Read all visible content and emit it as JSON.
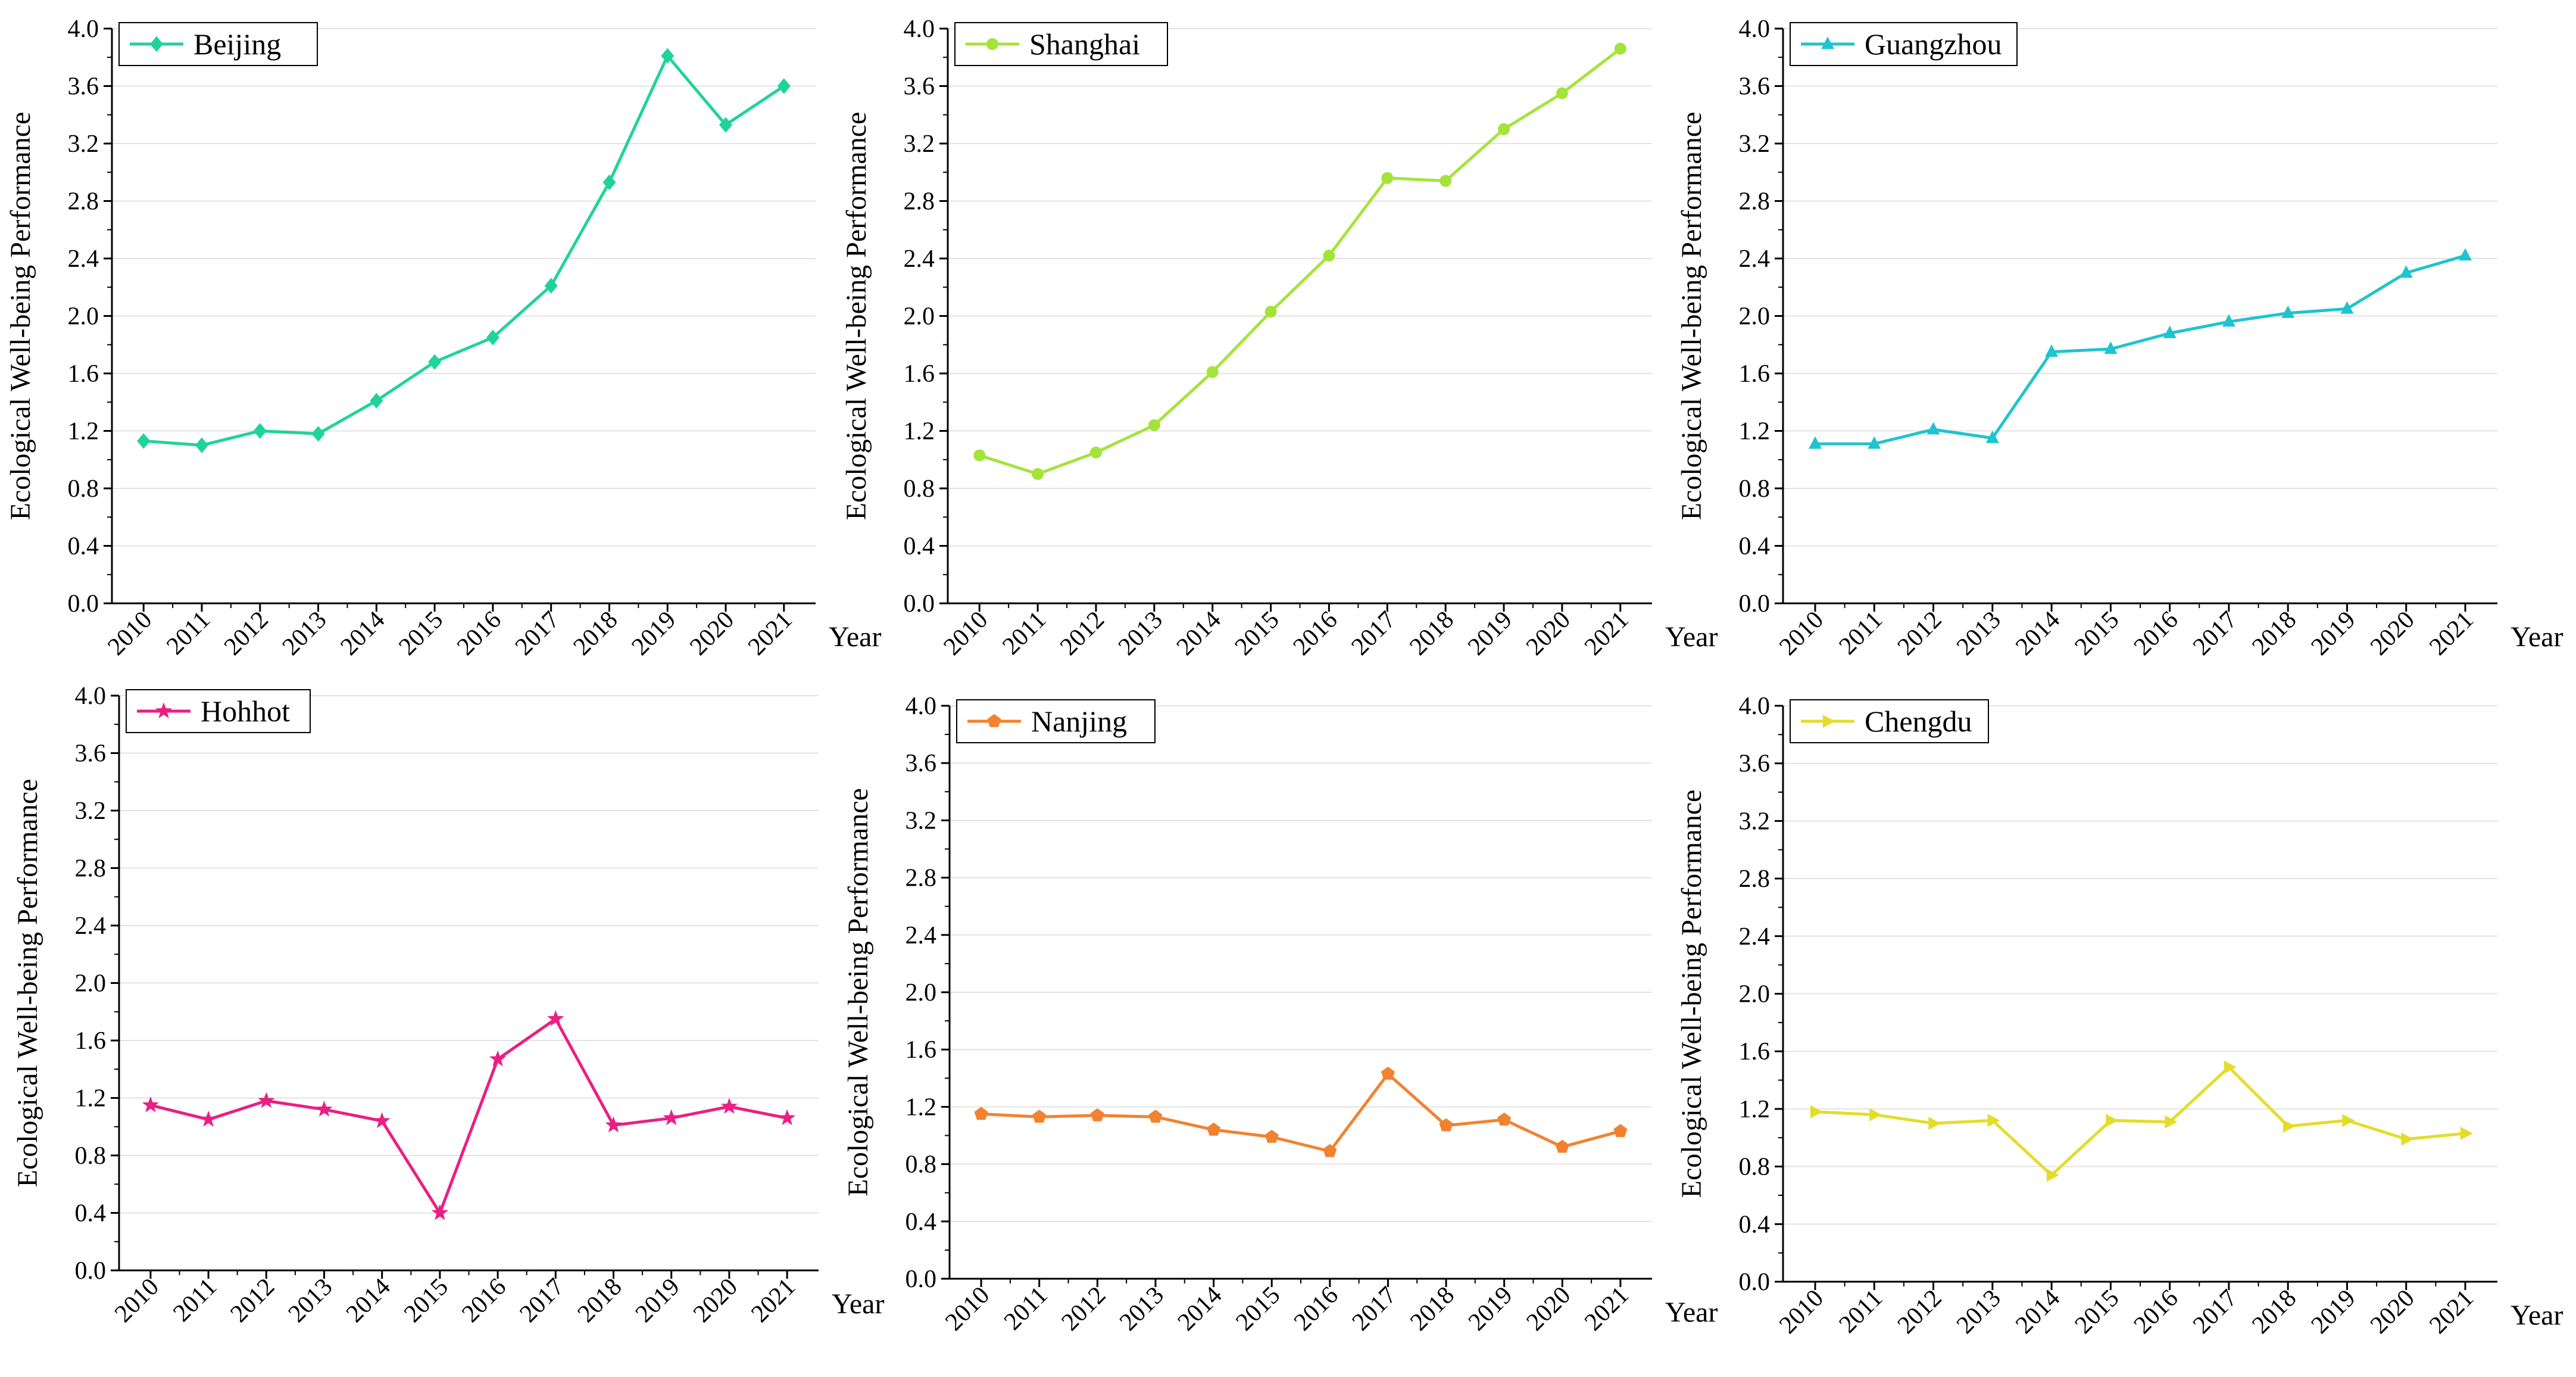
{
  "chart_data": [
    {
      "type": "line",
      "title": "",
      "legend": "Beijing",
      "legend_position": "top-left",
      "marker": "diamond",
      "color": "#1fd39a",
      "xlabel": "Year",
      "ylabel": "Ecological Well-being Performance",
      "ylim": [
        0,
        4
      ],
      "yticks": [
        "0.0",
        "0.4",
        "0.8",
        "1.2",
        "1.6",
        "2.0",
        "2.4",
        "2.8",
        "3.2",
        "3.6",
        "4.0"
      ],
      "categories": [
        "2010",
        "2011",
        "2012",
        "2013",
        "2014",
        "2015",
        "2016",
        "2017",
        "2018",
        "2019",
        "2020",
        "2021"
      ],
      "values": [
        1.13,
        1.1,
        1.2,
        1.18,
        1.41,
        1.68,
        1.85,
        2.21,
        2.93,
        3.81,
        3.33,
        3.6
      ],
      "grid": true
    },
    {
      "type": "line",
      "title": "",
      "legend": "Shanghai",
      "legend_position": "top-left",
      "marker": "circle",
      "color": "#a4e43a",
      "xlabel": "Year",
      "ylabel": "Ecological Well-being Performance",
      "ylim": [
        0,
        4
      ],
      "yticks": [
        "0.0",
        "0.4",
        "0.8",
        "1.2",
        "1.6",
        "2.0",
        "2.4",
        "2.8",
        "3.2",
        "3.6",
        "4.0"
      ],
      "categories": [
        "2010",
        "2011",
        "2012",
        "2013",
        "2014",
        "2015",
        "2016",
        "2017",
        "2018",
        "2019",
        "2020",
        "2021"
      ],
      "values": [
        1.03,
        0.9,
        1.05,
        1.24,
        1.61,
        2.03,
        2.42,
        2.96,
        2.94,
        3.3,
        3.55,
        3.86
      ],
      "grid": true
    },
    {
      "type": "line",
      "title": "",
      "legend": "Guangzhou",
      "legend_position": "top-left",
      "marker": "triangle",
      "color": "#1ec4cf",
      "xlabel": "Year",
      "ylabel": "Ecological Well-being Performance",
      "ylim": [
        0,
        4
      ],
      "yticks": [
        "0.0",
        "0.4",
        "0.8",
        "1.2",
        "1.6",
        "2.0",
        "2.4",
        "2.8",
        "3.2",
        "3.6",
        "4.0"
      ],
      "categories": [
        "2010",
        "2011",
        "2012",
        "2013",
        "2014",
        "2015",
        "2016",
        "2017",
        "2018",
        "2019",
        "2020",
        "2021"
      ],
      "values": [
        1.11,
        1.11,
        1.21,
        1.15,
        1.75,
        1.77,
        1.88,
        1.96,
        2.02,
        2.05,
        2.3,
        2.42
      ],
      "grid": true
    },
    {
      "type": "line",
      "title": "",
      "legend": "Hohhot",
      "legend_position": "top-left",
      "marker": "star",
      "color": "#ea1f83",
      "xlabel": "Year",
      "ylabel": "Ecological Well-being Performance",
      "ylim": [
        0,
        4
      ],
      "yticks": [
        "0.0",
        "0.4",
        "0.8",
        "1.2",
        "1.6",
        "2.0",
        "2.4",
        "2.8",
        "3.2",
        "3.6",
        "4.0"
      ],
      "categories": [
        "2010",
        "2011",
        "2012",
        "2013",
        "2014",
        "2015",
        "2016",
        "2017",
        "2018",
        "2019",
        "2020",
        "2021"
      ],
      "values": [
        1.15,
        1.05,
        1.18,
        1.12,
        1.04,
        0.4,
        1.47,
        1.75,
        1.01,
        1.06,
        1.14,
        1.06
      ],
      "grid": true
    },
    {
      "type": "line",
      "title": "",
      "legend": "Nanjing",
      "legend_position": "top-left",
      "marker": "pentagon",
      "color": "#f2822f",
      "xlabel": "Year",
      "ylabel": "Ecological Well-being Performance",
      "ylim": [
        0,
        4
      ],
      "yticks": [
        "0.0",
        "0.4",
        "0.8",
        "1.2",
        "1.6",
        "2.0",
        "2.4",
        "2.8",
        "3.2",
        "3.6",
        "4.0"
      ],
      "categories": [
        "2010",
        "2011",
        "2012",
        "2013",
        "2014",
        "2015",
        "2016",
        "2017",
        "2018",
        "2019",
        "2020",
        "2021"
      ],
      "values": [
        1.15,
        1.13,
        1.14,
        1.13,
        1.04,
        0.99,
        0.89,
        1.43,
        1.07,
        1.11,
        0.92,
        1.03
      ],
      "grid": true
    },
    {
      "type": "line",
      "title": "",
      "legend": "Chengdu",
      "legend_position": "top-left",
      "marker": "right-triangle",
      "color": "#e4dc2a",
      "xlabel": "Year",
      "ylabel": "Ecological Well-being Performance",
      "ylim": [
        0,
        4
      ],
      "yticks": [
        "0.0",
        "0.4",
        "0.8",
        "1.2",
        "1.6",
        "2.0",
        "2.4",
        "2.8",
        "3.2",
        "3.6",
        "4.0"
      ],
      "categories": [
        "2010",
        "2011",
        "2012",
        "2013",
        "2014",
        "2015",
        "2016",
        "2017",
        "2018",
        "2019",
        "2020",
        "2021"
      ],
      "values": [
        1.18,
        1.16,
        1.1,
        1.12,
        0.74,
        1.12,
        1.11,
        1.49,
        1.08,
        1.12,
        0.99,
        1.03
      ],
      "grid": true
    }
  ]
}
